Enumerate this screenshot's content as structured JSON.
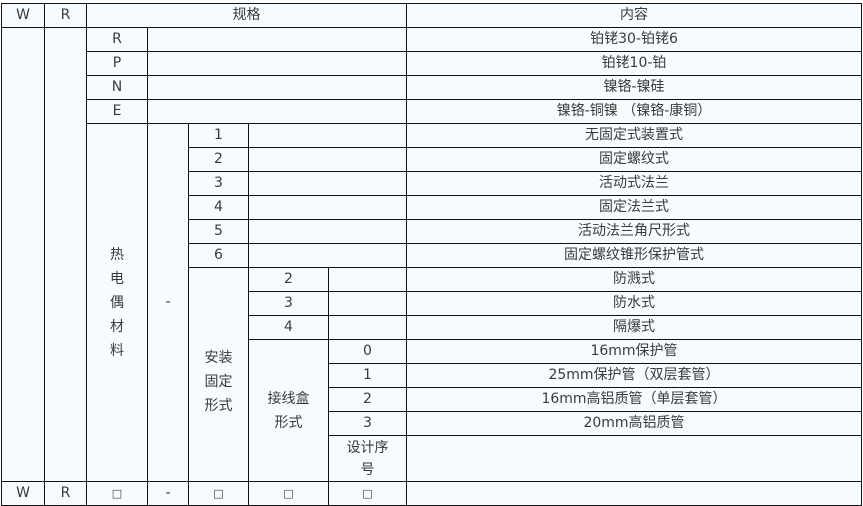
{
  "header": {
    "w": "W",
    "r": "R",
    "spec": "规格",
    "content": "内容"
  },
  "materials": [
    {
      "code": "R",
      "content": "铂铑30-铂铑6"
    },
    {
      "code": "P",
      "content": "铂铑10-铂"
    },
    {
      "code": "N",
      "content": "镍铬-镍硅"
    },
    {
      "code": "E",
      "content": "镍铬-铜镍 （镍铬-康铜）"
    }
  ],
  "material_label": "热电偶材料",
  "dash": "-",
  "mounting": [
    {
      "code": "1",
      "content": "无固定式装置式"
    },
    {
      "code": "2",
      "content": "固定螺纹式"
    },
    {
      "code": "3",
      "content": "活动式法兰"
    },
    {
      "code": "4",
      "content": "固定法兰式"
    },
    {
      "code": "5",
      "content": "活动法兰角尺形式"
    },
    {
      "code": "6",
      "content": "固定螺纹锥形保护管式"
    }
  ],
  "mounting_label": "安装固定形式",
  "protection": [
    {
      "code": "2",
      "content": "防溅式"
    },
    {
      "code": "3",
      "content": "防水式"
    },
    {
      "code": "4",
      "content": "隔爆式"
    }
  ],
  "junction_label": "接线盒形式",
  "junction": [
    {
      "code": "0",
      "content": "16mm保护管"
    },
    {
      "code": "1",
      "content": "25mm保护管（双层套管）"
    },
    {
      "code": "2",
      "content": "16mm高铝质管（单层套管）"
    },
    {
      "code": "3",
      "content": "20mm高铝质管"
    }
  ],
  "design_seq": "设计序号",
  "footer": [
    "W",
    "R",
    "□",
    "-",
    "□",
    "□",
    "□"
  ]
}
